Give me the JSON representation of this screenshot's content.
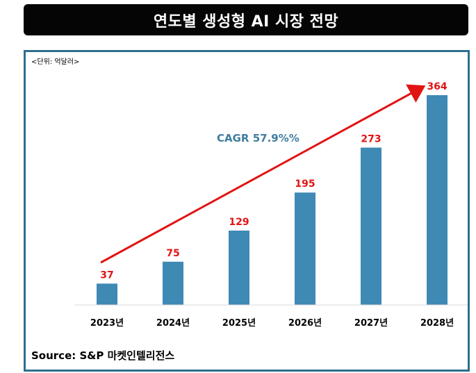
{
  "title": "연도별 생성형 AI 시장 전망",
  "unit_label": "<단위: 억달러>",
  "cagr_label": "CAGR 57.9%%",
  "source": "Source: S&P 마켓인텔리전스",
  "colors": {
    "bar": "#3f89b5",
    "value_label": "#e11414",
    "arrow": "#e11414",
    "cagr_text": "#3f7d9e",
    "frame": "#2e6f8e",
    "banner": "#050505"
  },
  "chart_data": {
    "type": "bar",
    "categories": [
      "2023년",
      "2024년",
      "2025년",
      "2026년",
      "2027년",
      "2028년"
    ],
    "values": [
      37,
      75,
      129,
      195,
      273,
      364
    ],
    "title": "연도별 생성형 AI 시장 전망",
    "xlabel": "",
    "ylabel": "",
    "ylim": [
      0,
      364
    ],
    "legend": "none",
    "grid": false
  }
}
